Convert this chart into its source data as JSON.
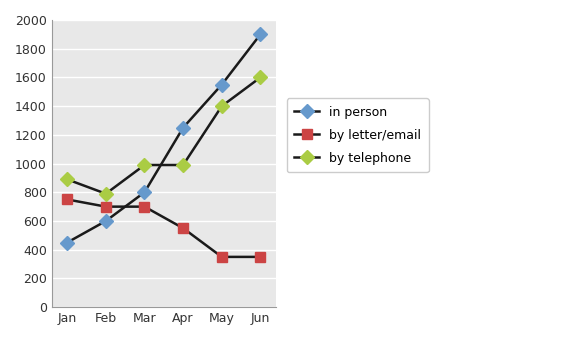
{
  "months": [
    "Jan",
    "Feb",
    "Mar",
    "Apr",
    "May",
    "Jun"
  ],
  "in_person": [
    450,
    600,
    800,
    1250,
    1550,
    1900
  ],
  "by_letter_email": [
    750,
    700,
    700,
    550,
    350,
    350
  ],
  "by_telephone": [
    890,
    790,
    990,
    990,
    1400,
    1600
  ],
  "ylim": [
    0,
    2000
  ],
  "yticks": [
    0,
    200,
    400,
    600,
    800,
    1000,
    1200,
    1400,
    1600,
    1800,
    2000
  ],
  "legend_labels": [
    "in person",
    "by letter/email",
    "by telephone"
  ],
  "line_color": "#1a1a1a",
  "in_person_marker_color": "#6699cc",
  "letter_marker_color": "#cc4444",
  "telephone_marker_color": "#aacc44",
  "background_color": "#ffffff",
  "plot_bg_color": "#e8e8e8",
  "grid_color": "#ffffff",
  "line_width": 1.8,
  "marker_size": 7
}
